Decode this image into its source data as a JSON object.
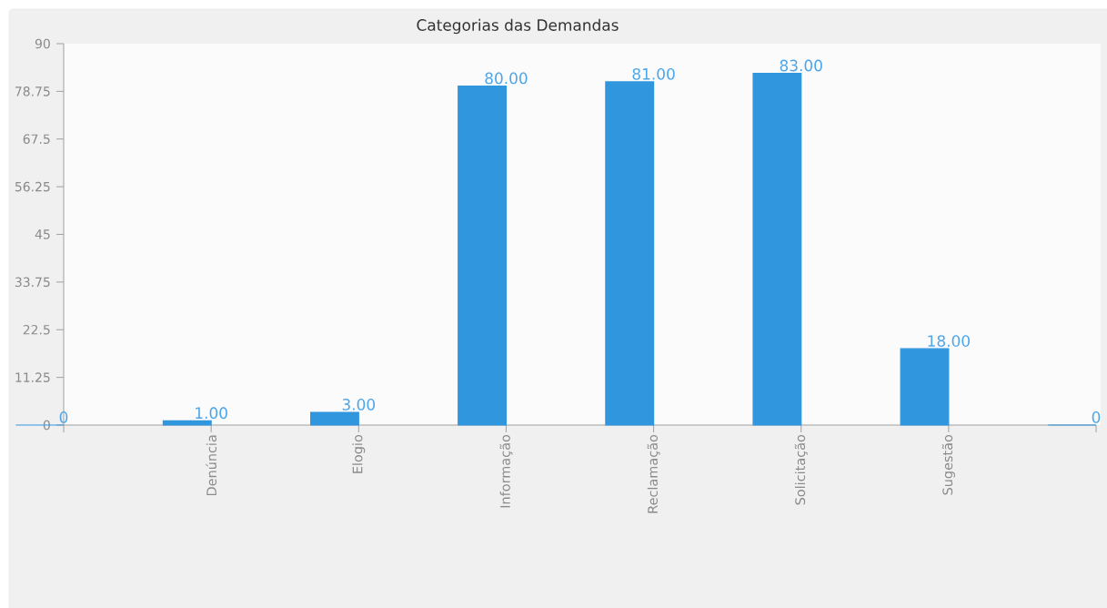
{
  "chart_data": {
    "type": "bar",
    "title": "Categorias das Demandas",
    "categories": [
      null,
      "Denúncia",
      "Elogio",
      "Informação",
      "Reclamação",
      "Solicitação",
      "Sugestão",
      null
    ],
    "values": [
      0,
      1,
      3,
      80,
      81,
      83,
      18,
      0
    ],
    "value_labels": [
      "0",
      "1.00",
      "3.00",
      "80.00",
      "81.00",
      "83.00",
      "18.00",
      "0"
    ],
    "color": "#3096de",
    "ylim": [
      0,
      90
    ],
    "yticks": [
      0,
      11.25,
      22.5,
      33.75,
      45,
      56.25,
      67.5,
      78.75,
      90
    ]
  }
}
